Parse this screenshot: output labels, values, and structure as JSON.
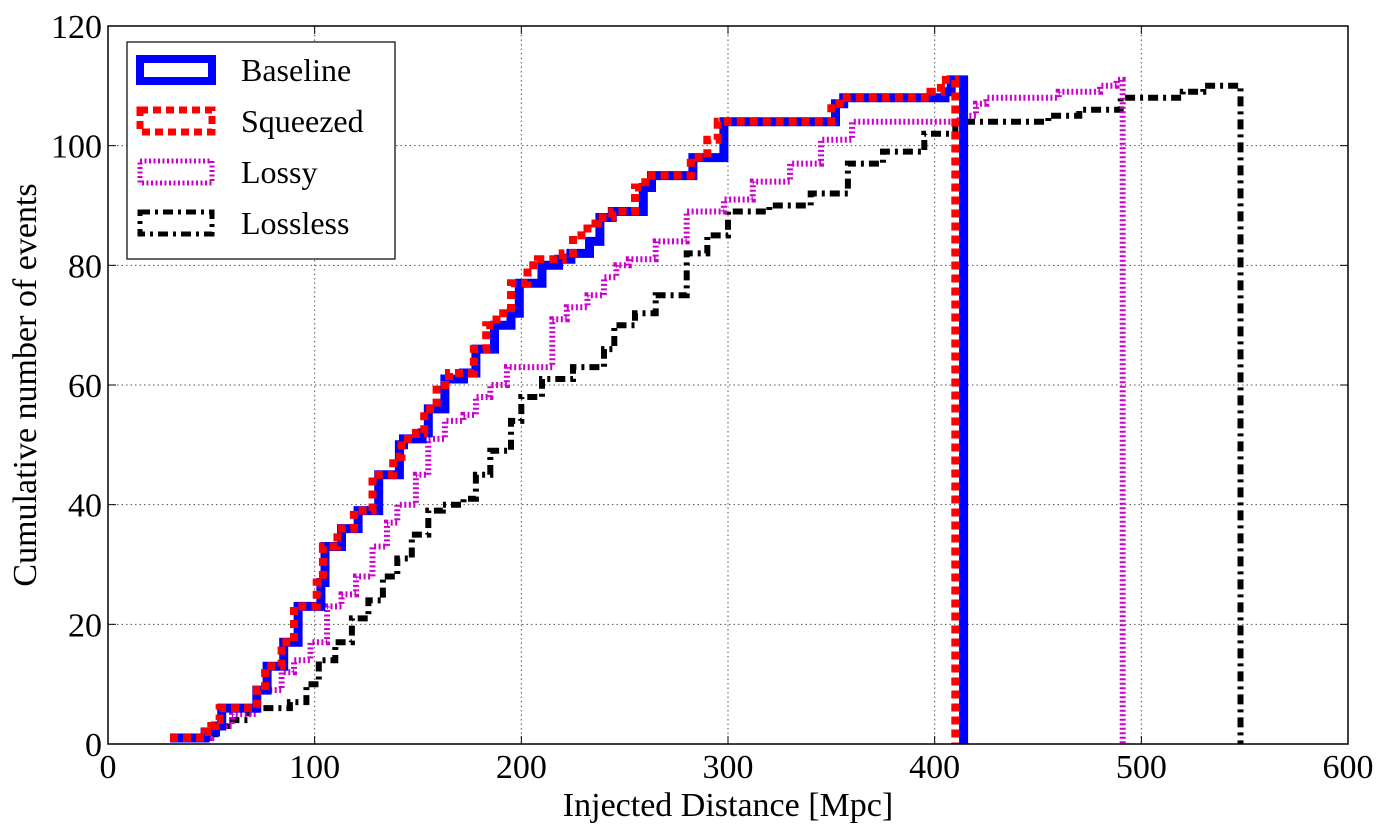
{
  "chart_data": {
    "type": "line",
    "subtype": "cumulative-step",
    "title": "",
    "xlabel": "Injected Distance [Mpc]",
    "ylabel": "Cumulative number of events",
    "xlim": [
      0,
      600
    ],
    "ylim": [
      0,
      120
    ],
    "xticks": [
      0,
      100,
      200,
      300,
      400,
      500,
      600
    ],
    "yticks": [
      0,
      20,
      40,
      60,
      80,
      100,
      120
    ],
    "xtick_labels": [
      "0",
      "100",
      "200",
      "300",
      "400",
      "500",
      "600"
    ],
    "ytick_labels": [
      "0",
      "20",
      "40",
      "60",
      "80",
      "100",
      "120"
    ],
    "grid": true,
    "legend_position": "top-left",
    "series": [
      {
        "name": "Baseline",
        "color": "#0000ff",
        "style": "solid",
        "x": [
          30,
          45,
          47,
          52,
          55,
          66,
          72,
          77,
          85,
          92,
          95,
          103,
          105,
          113,
          121,
          131,
          133,
          141,
          143,
          152,
          155,
          163,
          172,
          178,
          180,
          187,
          195,
          199,
          210,
          218,
          224,
          233,
          238,
          244,
          251,
          259,
          263,
          277,
          283,
          298,
          352,
          356,
          402,
          405,
          408,
          414
        ],
        "y": [
          1,
          1,
          2,
          3,
          6,
          6,
          9,
          13,
          17,
          23,
          23,
          27,
          33,
          36,
          39,
          45,
          45,
          50,
          51,
          52,
          56,
          61,
          62,
          66,
          66,
          70,
          72,
          77,
          80,
          81,
          82,
          84,
          88,
          89,
          89,
          93,
          95,
          95,
          98,
          104,
          107,
          108,
          108,
          109,
          111,
          0
        ]
      },
      {
        "name": "Squeezed",
        "color": "#ff0000",
        "style": "dotted",
        "x": [
          30,
          45,
          47,
          50,
          52,
          54,
          66,
          72,
          76,
          84,
          90,
          96,
          101,
          104,
          111,
          119,
          128,
          130,
          138,
          142,
          149,
          153,
          159,
          165,
          172,
          177,
          183,
          188,
          195,
          203,
          208,
          220,
          225,
          232,
          237,
          244,
          250,
          255,
          260,
          270,
          282,
          290,
          295,
          350,
          354,
          398,
          403,
          408,
          410
        ],
        "y": [
          1,
          1,
          2,
          3,
          4,
          6,
          6,
          9,
          13,
          17,
          23,
          23,
          27,
          33,
          36,
          39,
          45,
          45,
          48,
          51,
          52,
          56,
          60,
          62,
          62,
          66,
          70,
          72,
          77,
          80,
          81,
          82,
          85,
          87,
          88,
          89,
          89,
          93,
          95,
          95,
          98,
          101,
          104,
          107,
          108,
          109,
          111,
          111,
          0
        ]
      },
      {
        "name": "Lossy",
        "color": "#cc00cc",
        "style": "dashed",
        "x": [
          32,
          50,
          60,
          72,
          84,
          90,
          98,
          106,
          113,
          120,
          128,
          135,
          140,
          149,
          155,
          163,
          172,
          178,
          185,
          193,
          200,
          215,
          222,
          232,
          240,
          246,
          252,
          265,
          280,
          298,
          312,
          330,
          345,
          360,
          405,
          412,
          420,
          425,
          440,
          460,
          480,
          488,
          491
        ],
        "y": [
          1,
          3,
          5,
          9,
          12,
          14,
          17,
          23,
          25,
          28,
          33,
          37,
          40,
          45,
          51,
          54,
          55,
          58,
          60,
          63,
          63,
          71,
          73,
          75,
          78,
          80,
          81,
          84,
          89,
          91,
          94,
          97,
          101,
          104,
          104,
          105,
          107,
          108,
          108,
          109,
          110,
          111,
          0
        ]
      },
      {
        "name": "Lossless",
        "color": "#000000",
        "style": "dash-dot",
        "x": [
          34,
          52,
          58,
          68,
          78,
          88,
          96,
          102,
          110,
          118,
          126,
          133,
          140,
          147,
          155,
          162,
          172,
          178,
          185,
          195,
          200,
          210,
          225,
          240,
          245,
          255,
          265,
          280,
          290,
          300,
          320,
          340,
          358,
          375,
          395,
          410,
          430,
          455,
          470,
          490,
          520,
          530,
          548
        ],
        "y": [
          1,
          3,
          4,
          6,
          6,
          7,
          10,
          14,
          17,
          21,
          24,
          28,
          31,
          35,
          39,
          40,
          41,
          45,
          49,
          54,
          58,
          61,
          63,
          66,
          70,
          72,
          75,
          82,
          85,
          89,
          90,
          92,
          97,
          99,
          102,
          104,
          104,
          105,
          106,
          108,
          109,
          110,
          0
        ]
      }
    ]
  }
}
